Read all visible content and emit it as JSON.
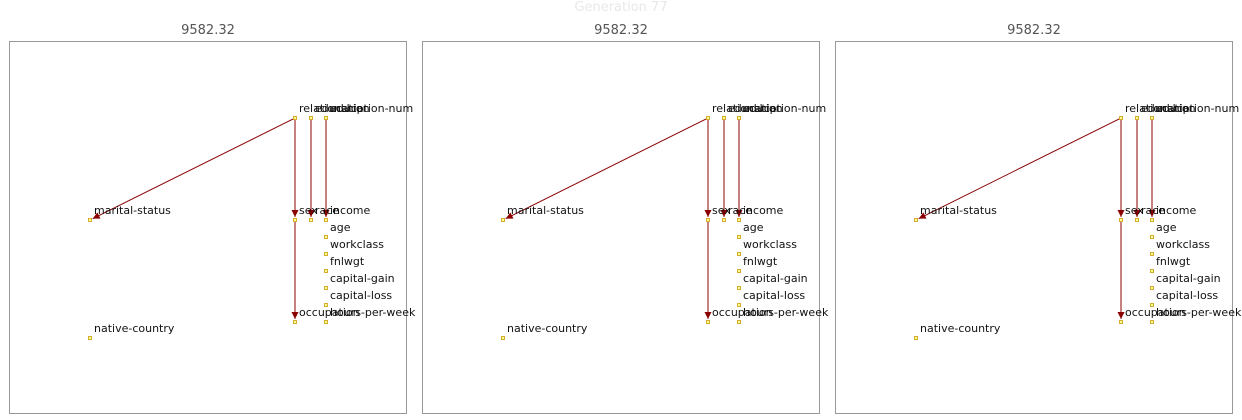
{
  "title": "Generation 77",
  "colors": {
    "edge": "#8b0000",
    "node_fill": "#ffff99",
    "node_stroke": "#cc9900",
    "frame": "#999999",
    "title": "#e8e8e8"
  },
  "panels": [
    {
      "score": "9582.32"
    },
    {
      "score": "9582.32"
    },
    {
      "score": "9582.32"
    }
  ],
  "nodes": [
    {
      "id": "relationship",
      "label": "relationship"
    },
    {
      "id": "education",
      "label": "education"
    },
    {
      "id": "education-num",
      "label": "education-num"
    },
    {
      "id": "marital-status",
      "label": "marital-status"
    },
    {
      "id": "sex",
      "label": "sex"
    },
    {
      "id": "race",
      "label": "race"
    },
    {
      "id": "income",
      "label": "income"
    },
    {
      "id": "age",
      "label": "age"
    },
    {
      "id": "workclass",
      "label": "workclass"
    },
    {
      "id": "fnlwgt",
      "label": "fnlwgt"
    },
    {
      "id": "capital-gain",
      "label": "capital-gain"
    },
    {
      "id": "capital-loss",
      "label": "capital-loss"
    },
    {
      "id": "occupation",
      "label": "occupation"
    },
    {
      "id": "hours-per-week",
      "label": "hours-per-week"
    },
    {
      "id": "native-country",
      "label": "native-country"
    }
  ],
  "edges": [
    {
      "from": "relationship",
      "to": "marital-status"
    },
    {
      "from": "relationship",
      "to": "sex"
    },
    {
      "from": "education",
      "to": "race"
    },
    {
      "from": "education-num",
      "to": "income"
    },
    {
      "from": "sex",
      "to": "occupation"
    }
  ]
}
